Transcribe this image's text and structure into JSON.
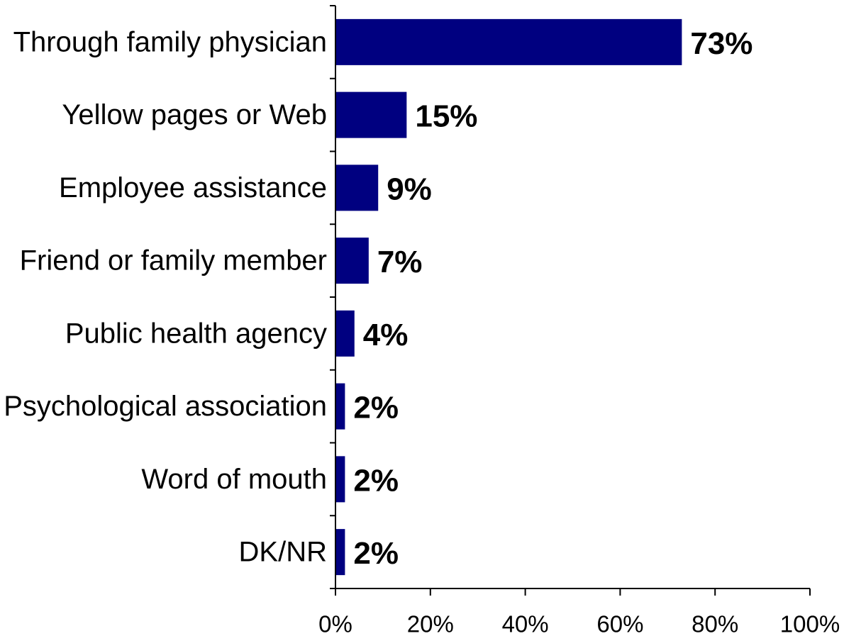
{
  "chart_data": {
    "type": "bar",
    "orientation": "horizontal",
    "categories": [
      "Through family physician",
      "Yellow pages or Web",
      "Employee assistance",
      "Friend or family member",
      "Public health agency",
      "Psychological association",
      "Word of mouth",
      "DK/NR"
    ],
    "values": [
      73,
      15,
      9,
      7,
      4,
      2,
      2,
      2
    ],
    "value_labels": [
      "73%",
      "15%",
      "9%",
      "7%",
      "4%",
      "2%",
      "2%",
      "2%"
    ],
    "xlim": [
      0,
      100
    ],
    "x_ticks": [
      0,
      20,
      40,
      60,
      80,
      100
    ],
    "x_tick_labels": [
      "0%",
      "20%",
      "40%",
      "60%",
      "80%",
      "100%"
    ],
    "title": "",
    "xlabel": "",
    "ylabel": "",
    "grid": false,
    "bar_color": "#000080"
  }
}
